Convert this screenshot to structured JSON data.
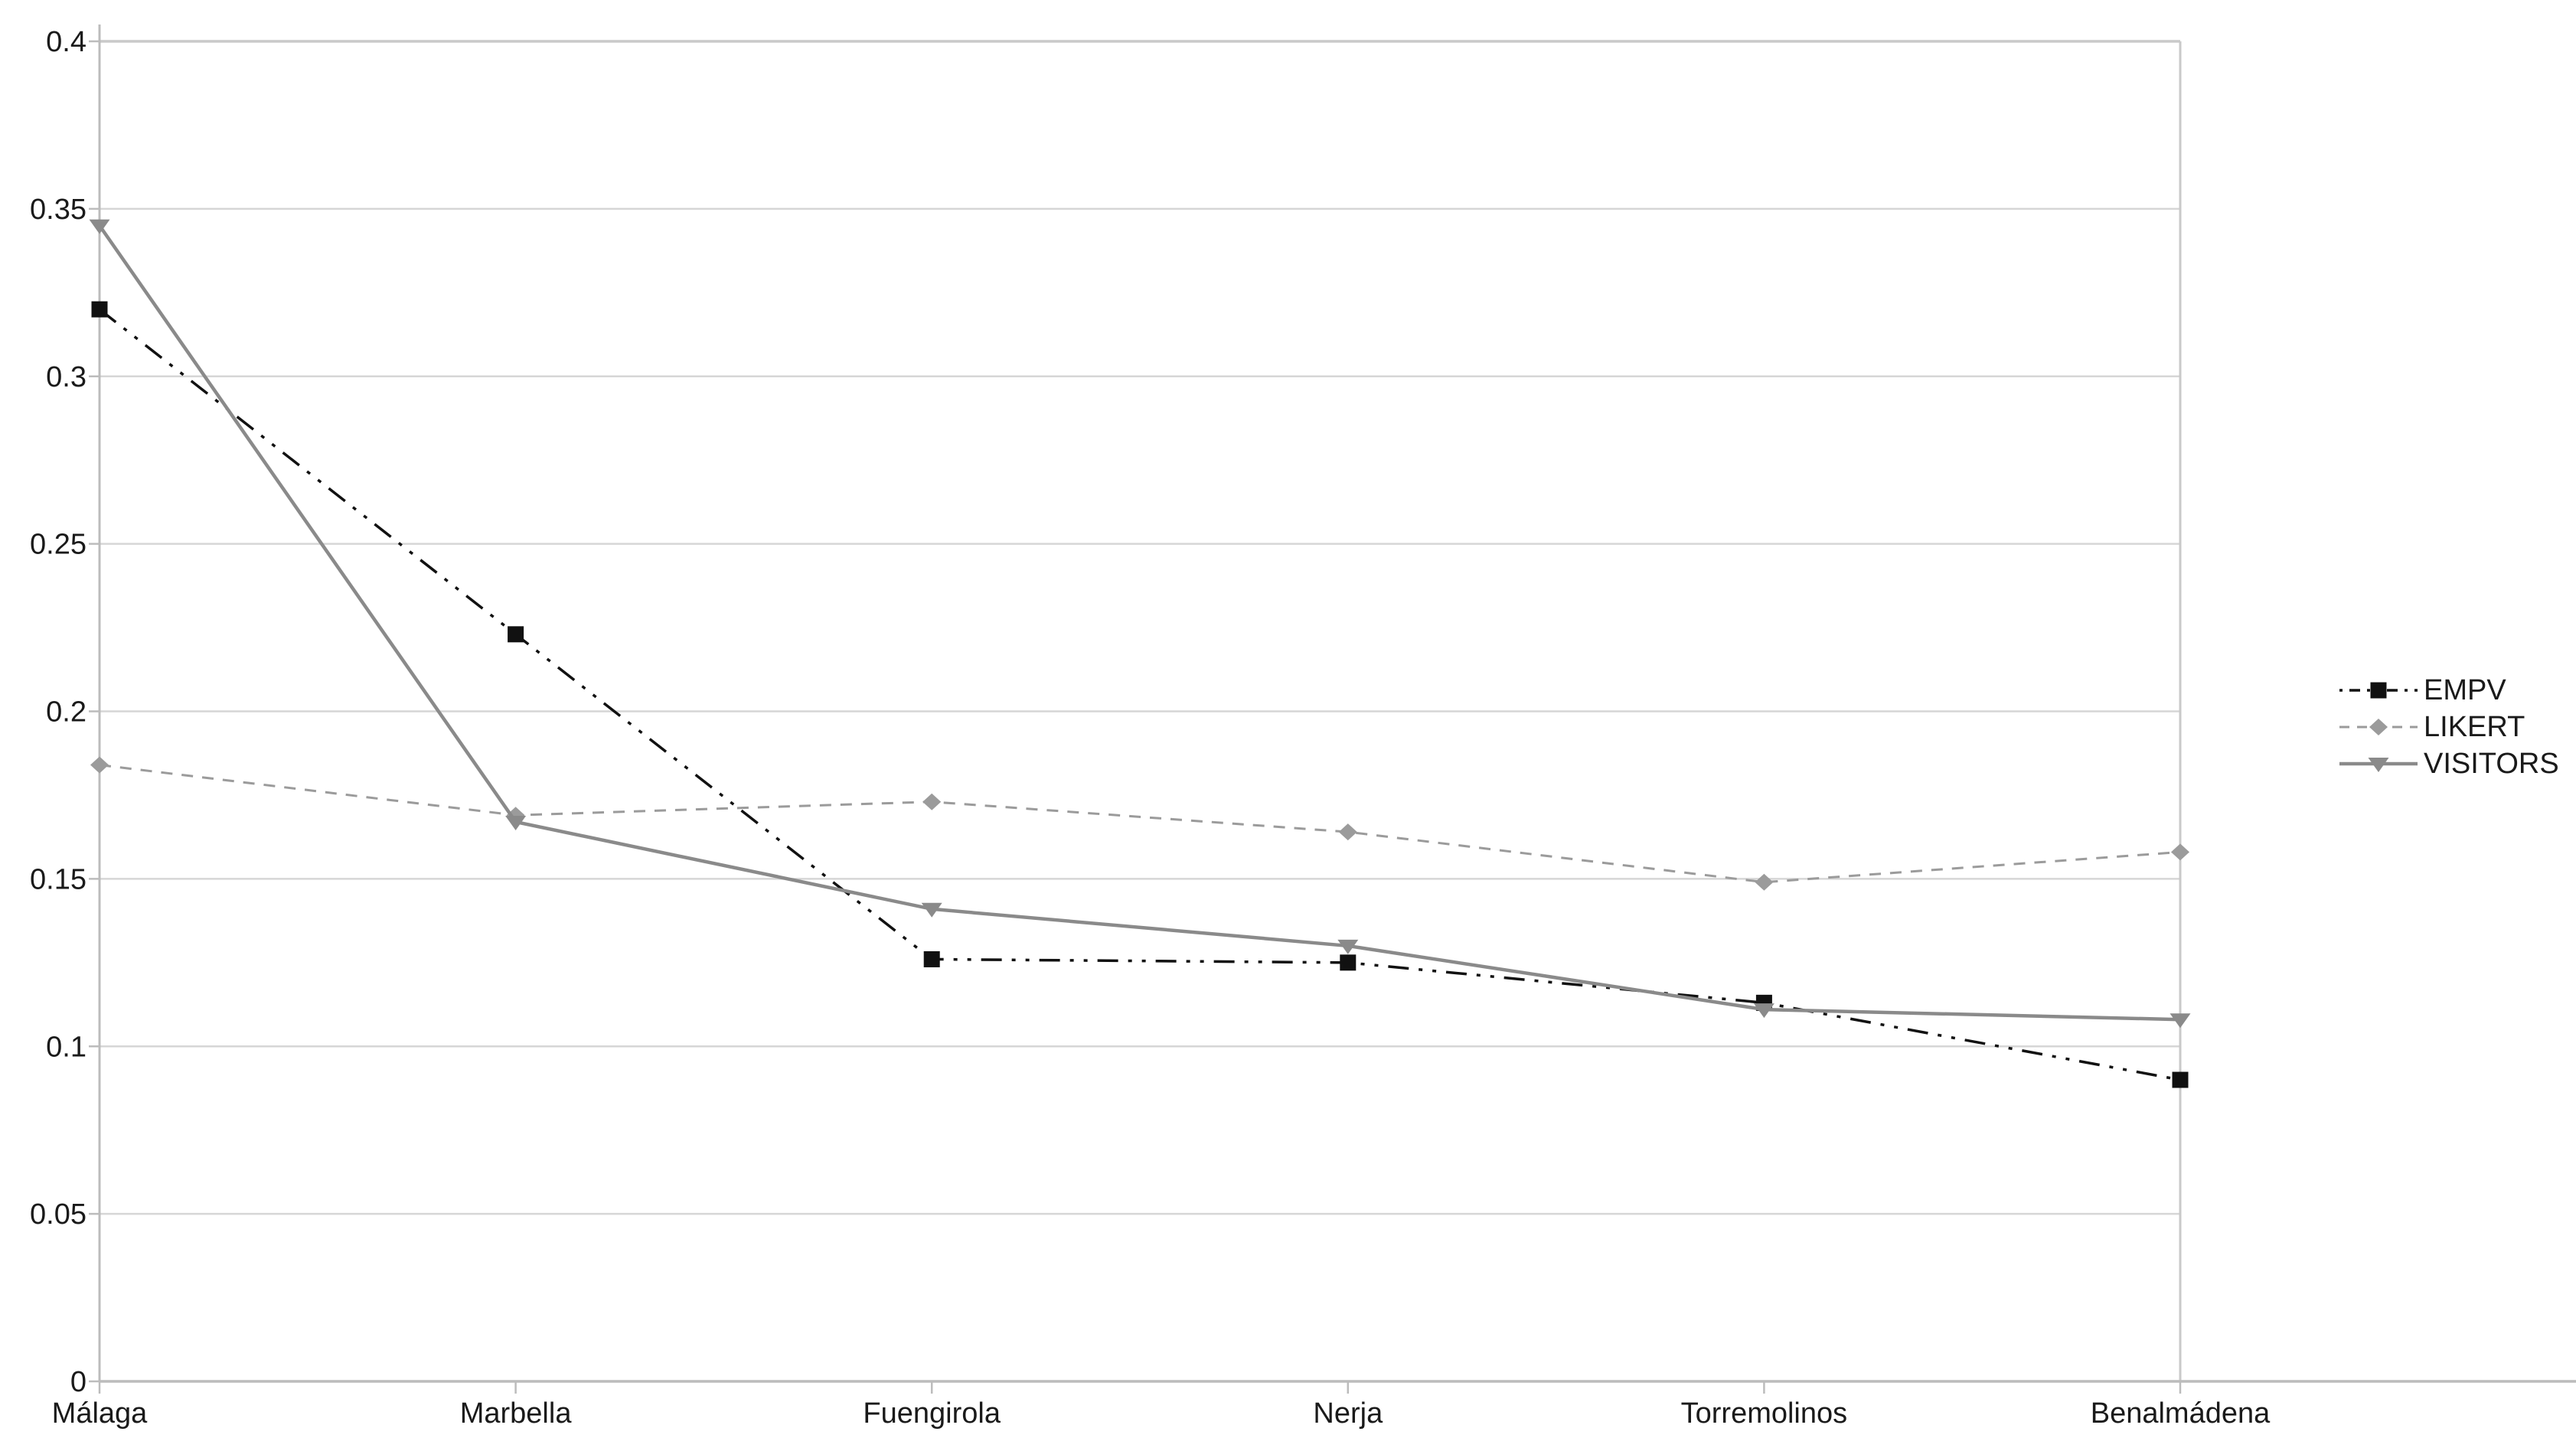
{
  "chart_data": {
    "type": "line",
    "title": "",
    "xlabel": "",
    "ylabel": "",
    "categories": [
      "Málaga",
      "Marbella",
      "Fuengirola",
      "Nerja",
      "Torremolinos",
      "Benalmádena"
    ],
    "series": [
      {
        "name": "EMPV",
        "color": "#111111",
        "line_style": "dash-dot-dot",
        "marker": "square",
        "values": [
          0.32,
          0.223,
          0.126,
          0.125,
          0.113,
          0.09
        ]
      },
      {
        "name": "LIKERT",
        "color": "#9b9b9b",
        "line_style": "dashed",
        "marker": "diamond",
        "values": [
          0.184,
          0.169,
          0.173,
          0.164,
          0.149,
          0.158
        ]
      },
      {
        "name": "VISITORS",
        "color": "#8a8a8a",
        "line_style": "solid",
        "marker": "triangle-down",
        "values": [
          0.345,
          0.167,
          0.141,
          0.13,
          0.111,
          0.108
        ]
      }
    ],
    "ylim": [
      0,
      0.4
    ],
    "ytick_step": 0.05,
    "ytick_labels": [
      "0",
      "0.05",
      "0.1",
      "0.15",
      "0.2",
      "0.25",
      "0.3",
      "0.35",
      "0.4"
    ],
    "grid": true,
    "legend_position": "right"
  },
  "colors": {
    "background": "#ffffff",
    "gridline": "#d6d6d6",
    "axis": "#bcbcbc",
    "frame": "#c9c9c9",
    "tick": "#bcbcbc",
    "label_text": "#1a1a1a"
  }
}
